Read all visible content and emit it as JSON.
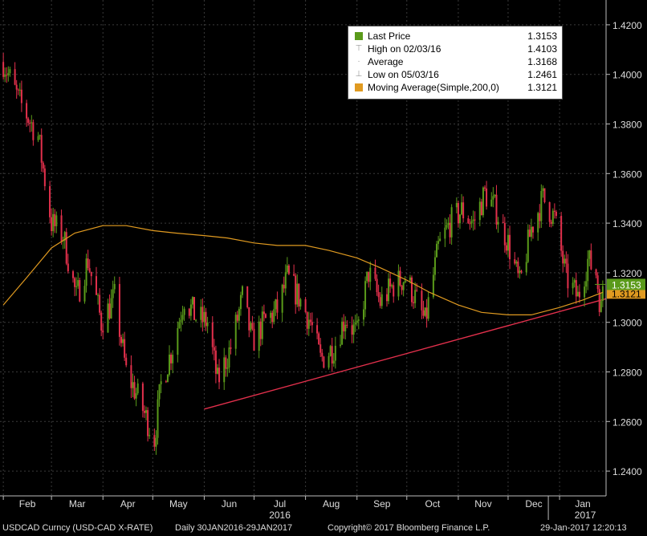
{
  "chart_data": {
    "type": "candlestick",
    "x_range": [
      "2016-01-30",
      "2017-01-29"
    ],
    "ylim": [
      1.23,
      1.43
    ],
    "y_ticks": [
      "1.2400",
      "1.2600",
      "1.2800",
      "1.3000",
      "1.3200",
      "1.3400",
      "1.3600",
      "1.3800",
      "1.4000",
      "1.4200"
    ],
    "month_labels": [
      "Feb",
      "Mar",
      "Apr",
      "May",
      "Jun",
      "Jul",
      "Aug",
      "Sep",
      "Oct",
      "Nov",
      "Dec",
      "Jan"
    ],
    "year_labels": [
      "2016",
      "2017"
    ],
    "colors": {
      "up": "#5a9a1a",
      "down": "#e3304c",
      "moving_average": "#e09a20",
      "trendline": "#e3304c",
      "background": "#000000",
      "grid": "#3a3a3a"
    },
    "price_path": [
      {
        "date": "2016-02-01",
        "close": 1.405
      },
      {
        "date": "2016-02-10",
        "close": 1.39
      },
      {
        "date": "2016-02-22",
        "close": 1.375
      },
      {
        "date": "2016-03-01",
        "close": 1.34
      },
      {
        "date": "2016-03-08",
        "close": 1.335
      },
      {
        "date": "2016-03-16",
        "close": 1.31
      },
      {
        "date": "2016-03-23",
        "close": 1.325
      },
      {
        "date": "2016-03-31",
        "close": 1.3
      },
      {
        "date": "2016-04-08",
        "close": 1.31
      },
      {
        "date": "2016-04-15",
        "close": 1.28
      },
      {
        "date": "2016-04-22",
        "close": 1.27
      },
      {
        "date": "2016-05-02",
        "close": 1.253
      },
      {
        "date": "2016-05-06",
        "close": 1.275
      },
      {
        "date": "2016-05-13",
        "close": 1.29
      },
      {
        "date": "2016-05-20",
        "close": 1.31
      },
      {
        "date": "2016-05-27",
        "close": 1.302
      },
      {
        "date": "2016-06-03",
        "close": 1.3
      },
      {
        "date": "2016-06-09",
        "close": 1.276
      },
      {
        "date": "2016-06-17",
        "close": 1.29
      },
      {
        "date": "2016-06-24",
        "close": 1.31
      },
      {
        "date": "2016-06-30",
        "close": 1.292
      },
      {
        "date": "2016-07-07",
        "close": 1.3
      },
      {
        "date": "2016-07-15",
        "close": 1.305
      },
      {
        "date": "2016-07-21",
        "close": 1.318
      },
      {
        "date": "2016-07-28",
        "close": 1.31
      },
      {
        "date": "2016-08-04",
        "close": 1.3
      },
      {
        "date": "2016-08-10",
        "close": 1.285
      },
      {
        "date": "2016-08-18",
        "close": 1.29
      },
      {
        "date": "2016-08-25",
        "close": 1.302
      },
      {
        "date": "2016-09-01",
        "close": 1.295
      },
      {
        "date": "2016-09-08",
        "close": 1.32
      },
      {
        "date": "2016-09-15",
        "close": 1.308
      },
      {
        "date": "2016-09-23",
        "close": 1.315
      },
      {
        "date": "2016-09-30",
        "close": 1.318
      },
      {
        "date": "2016-10-06",
        "close": 1.31
      },
      {
        "date": "2016-10-12",
        "close": 1.3
      },
      {
        "date": "2016-10-20",
        "close": 1.33
      },
      {
        "date": "2016-10-27",
        "close": 1.34
      },
      {
        "date": "2016-11-03",
        "close": 1.345
      },
      {
        "date": "2016-11-10",
        "close": 1.34
      },
      {
        "date": "2016-11-17",
        "close": 1.352
      },
      {
        "date": "2016-11-24",
        "close": 1.345
      },
      {
        "date": "2016-12-01",
        "close": 1.332
      },
      {
        "date": "2016-12-08",
        "close": 1.315
      },
      {
        "date": "2016-12-15",
        "close": 1.338
      },
      {
        "date": "2016-12-22",
        "close": 1.35
      },
      {
        "date": "2016-12-29",
        "close": 1.342
      },
      {
        "date": "2017-01-05",
        "close": 1.318
      },
      {
        "date": "2017-01-12",
        "close": 1.31
      },
      {
        "date": "2017-01-18",
        "close": 1.325
      },
      {
        "date": "2017-01-23",
        "close": 1.32
      },
      {
        "date": "2017-01-26",
        "close": 1.305
      },
      {
        "date": "2017-01-27",
        "close": 1.3153
      }
    ],
    "moving_average": [
      {
        "date": "2016-02-01",
        "value": 1.307
      },
      {
        "date": "2016-02-15",
        "value": 1.318
      },
      {
        "date": "2016-03-01",
        "value": 1.33
      },
      {
        "date": "2016-03-15",
        "value": 1.336
      },
      {
        "date": "2016-04-01",
        "value": 1.339
      },
      {
        "date": "2016-04-15",
        "value": 1.339
      },
      {
        "date": "2016-05-01",
        "value": 1.337
      },
      {
        "date": "2016-05-15",
        "value": 1.336
      },
      {
        "date": "2016-06-01",
        "value": 1.335
      },
      {
        "date": "2016-06-15",
        "value": 1.334
      },
      {
        "date": "2016-07-01",
        "value": 1.332
      },
      {
        "date": "2016-07-15",
        "value": 1.331
      },
      {
        "date": "2016-08-01",
        "value": 1.331
      },
      {
        "date": "2016-08-15",
        "value": 1.329
      },
      {
        "date": "2016-09-01",
        "value": 1.326
      },
      {
        "date": "2016-09-15",
        "value": 1.322
      },
      {
        "date": "2016-10-01",
        "value": 1.317
      },
      {
        "date": "2016-10-15",
        "value": 1.312
      },
      {
        "date": "2016-11-01",
        "value": 1.307
      },
      {
        "date": "2016-11-15",
        "value": 1.304
      },
      {
        "date": "2016-12-01",
        "value": 1.303
      },
      {
        "date": "2016-12-15",
        "value": 1.303
      },
      {
        "date": "2017-01-01",
        "value": 1.306
      },
      {
        "date": "2017-01-15",
        "value": 1.309
      },
      {
        "date": "2017-01-27",
        "value": 1.3121
      }
    ],
    "trendline": [
      {
        "date": "2016-06-01",
        "value": 1.265
      },
      {
        "date": "2017-01-29",
        "value": 1.3095
      }
    ],
    "legend": [
      {
        "label": "Last Price",
        "value": "1.3153",
        "swatch": "#5a9a1a"
      },
      {
        "label": "High on 02/03/16",
        "value": "1.4103",
        "symbol": "⊤"
      },
      {
        "label": "Average",
        "value": "1.3168",
        "symbol": "·"
      },
      {
        "label": "Low on 05/03/16",
        "value": "1.2461",
        "symbol": "⊥"
      },
      {
        "label": "Moving Average(Simple,200,0)",
        "value": "1.3121",
        "swatch": "#e09a20"
      }
    ],
    "last_price_tag": "1.3153",
    "ma_tag": "1.3121",
    "grid": true
  },
  "footer": {
    "ticker": "USDCAD Curncy (USD-CAD X-RATE)",
    "range": "Daily 30JAN2016-29JAN2017",
    "copyright": "Copyright© 2017 Bloomberg Finance L.P.",
    "timestamp": "29-Jan-2017 12:20:13"
  }
}
